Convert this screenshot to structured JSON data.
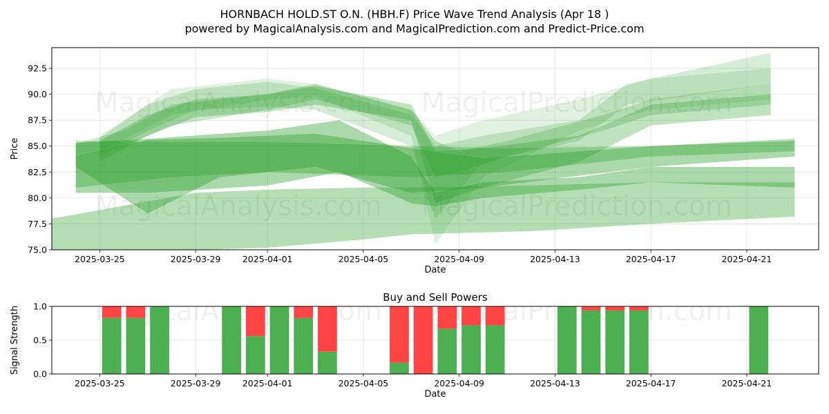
{
  "title": "HORNBACH HOLD.ST O.N. (HBH.F) Price Wave Trend Analysis (Apr 18 )",
  "subtitle": "powered by MagicalAnalysis.com and MagicalPrediction.com and Predict-Price.com",
  "watermarks": [
    "MagicalAnalysis.com",
    "MagicalPrediction.com"
  ],
  "colors": {
    "band": "#2ca02c",
    "buy": "#4caf50",
    "sell": "#ff4444",
    "grid": "#b0b0b0"
  },
  "chart_data": [
    {
      "type": "area",
      "xlabel": "Date",
      "ylabel": "Price",
      "xlim": [
        "2025-03-23",
        "2025-04-24"
      ],
      "ylim": [
        75.0,
        94.5
      ],
      "x_ticks": [
        "2025-03-25",
        "2025-03-29",
        "2025-04-01",
        "2025-04-05",
        "2025-04-09",
        "2025-04-13",
        "2025-04-17",
        "2025-04-21"
      ],
      "y_ticks": [
        "75.0",
        "77.5",
        "80.0",
        "82.5",
        "85.0",
        "87.5",
        "90.0",
        "92.5"
      ],
      "grid": true,
      "bands": [
        {
          "x": [
            "2025-03-24",
            "2025-03-28",
            "2025-04-01",
            "2025-04-07",
            "2025-04-11",
            "2025-04-17",
            "2025-04-23"
          ],
          "upper": [
            85.5,
            85.4,
            85.4,
            85.0,
            84.8,
            85.0,
            85.7
          ],
          "lower": [
            81.0,
            82.0,
            82.5,
            82.0,
            82.5,
            84.0,
            84.5
          ],
          "opacity": 0.35
        },
        {
          "x": [
            "2025-03-24",
            "2025-03-27",
            "2025-03-30",
            "2025-04-03",
            "2025-04-07",
            "2025-04-10",
            "2025-04-17",
            "2025-04-23"
          ],
          "upper": [
            84.0,
            85.6,
            85.8,
            86.2,
            84.8,
            83.8,
            85.0,
            85.5
          ],
          "lower": [
            83.0,
            78.5,
            82.0,
            83.0,
            80.5,
            81.0,
            83.0,
            84.0
          ],
          "opacity": 0.4
        },
        {
          "x": [
            "2025-03-24",
            "2025-03-27",
            "2025-04-01",
            "2025-04-04",
            "2025-04-07",
            "2025-04-08",
            "2025-04-10",
            "2025-04-14",
            "2025-04-17",
            "2025-04-23"
          ],
          "upper": [
            85.3,
            85.7,
            86.5,
            87.5,
            84.0,
            80.5,
            81.5,
            82.0,
            83.0,
            83.0
          ],
          "lower": [
            80.5,
            80.5,
            81.2,
            82.5,
            79.5,
            79.2,
            80.0,
            80.8,
            81.5,
            81.0
          ],
          "opacity": 0.4
        },
        {
          "x": [
            "2025-03-23",
            "2025-03-29",
            "2025-04-01",
            "2025-04-05",
            "2025-04-07",
            "2025-04-12",
            "2025-04-17",
            "2025-04-23"
          ],
          "upper": [
            78.0,
            80.5,
            80.8,
            81.0,
            81.0,
            81.2,
            81.5,
            81.5
          ],
          "lower": [
            75.0,
            75.0,
            75.2,
            76.0,
            76.5,
            76.8,
            77.5,
            78.2
          ],
          "opacity": 0.35
        },
        {
          "x": [
            "2025-03-25",
            "2025-03-27",
            "2025-03-29",
            "2025-04-01",
            "2025-04-03",
            "2025-04-07",
            "2025-04-08",
            "2025-04-10",
            "2025-04-14",
            "2025-04-17",
            "2025-04-22"
          ],
          "upper": [
            85.5,
            88.0,
            89.5,
            90.0,
            90.8,
            89.0,
            84.5,
            84.8,
            86.0,
            89.0,
            90.0
          ],
          "lower": [
            83.5,
            86.0,
            87.8,
            88.3,
            89.0,
            87.5,
            79.5,
            81.0,
            83.5,
            87.0,
            88.0
          ],
          "opacity": 0.3
        },
        {
          "x": [
            "2025-03-25",
            "2025-03-27",
            "2025-03-29",
            "2025-04-01",
            "2025-04-03",
            "2025-04-07",
            "2025-04-08",
            "2025-04-10",
            "2025-04-14",
            "2025-04-16",
            "2025-04-22"
          ],
          "upper": [
            85.8,
            89.0,
            90.5,
            91.2,
            90.6,
            88.0,
            85.0,
            86.0,
            87.5,
            91.0,
            94.0
          ],
          "lower": [
            84.0,
            86.5,
            88.5,
            88.8,
            88.5,
            85.0,
            78.0,
            83.5,
            85.5,
            89.0,
            91.0
          ],
          "opacity": 0.2
        },
        {
          "x": [
            "2025-03-25",
            "2025-03-28",
            "2025-04-01",
            "2025-04-03",
            "2025-04-07",
            "2025-04-08",
            "2025-04-10",
            "2025-04-14",
            "2025-04-17",
            "2025-04-22"
          ],
          "upper": [
            86.0,
            90.5,
            91.5,
            91.0,
            88.5,
            86.0,
            87.5,
            89.5,
            91.5,
            92.5
          ],
          "lower": [
            84.5,
            88.0,
            89.5,
            89.8,
            86.0,
            75.5,
            82.0,
            86.5,
            88.5,
            89.5
          ],
          "opacity": 0.15
        },
        {
          "x": [
            "2025-03-24",
            "2025-03-26",
            "2025-03-28",
            "2025-04-01",
            "2025-04-03",
            "2025-04-07",
            "2025-04-08",
            "2025-04-09",
            "2025-04-11",
            "2025-04-15",
            "2025-04-17",
            "2025-04-22"
          ],
          "upper": [
            85.2,
            86.5,
            89.0,
            90.0,
            91.0,
            88.5,
            85.5,
            84.5,
            85.5,
            88.0,
            89.5,
            91.0
          ],
          "lower": [
            84.0,
            85.0,
            87.0,
            88.5,
            89.5,
            87.0,
            82.0,
            82.5,
            84.0,
            86.5,
            88.0,
            89.0
          ],
          "opacity": 0.25
        }
      ]
    },
    {
      "type": "bar",
      "title": "Buy and Sell Powers",
      "xlabel": "Date",
      "ylabel": "Signal Strength",
      "xlim": [
        "2025-03-23",
        "2025-04-24"
      ],
      "ylim": [
        0.0,
        1.0
      ],
      "x_ticks": [
        "2025-03-25",
        "2025-03-29",
        "2025-04-01",
        "2025-04-05",
        "2025-04-09",
        "2025-04-13",
        "2025-04-17",
        "2025-04-21"
      ],
      "y_ticks": [
        "0.0",
        "0.5",
        "1.0"
      ],
      "grid": true,
      "bars": [
        {
          "date": "2025-03-25",
          "buy": 0.83
        },
        {
          "date": "2025-03-26",
          "buy": 0.83
        },
        {
          "date": "2025-03-27",
          "buy": 1.0
        },
        {
          "date": "2025-03-30",
          "buy": 1.0
        },
        {
          "date": "2025-03-31",
          "buy": 0.56
        },
        {
          "date": "2025-04-01",
          "buy": 1.0
        },
        {
          "date": "2025-04-02",
          "buy": 0.83
        },
        {
          "date": "2025-04-03",
          "buy": 0.33
        },
        {
          "date": "2025-04-06",
          "buy": 0.17
        },
        {
          "date": "2025-04-07",
          "buy": 0.0
        },
        {
          "date": "2025-04-08",
          "buy": 0.67
        },
        {
          "date": "2025-04-09",
          "buy": 0.72
        },
        {
          "date": "2025-04-10",
          "buy": 0.72
        },
        {
          "date": "2025-04-13",
          "buy": 1.0
        },
        {
          "date": "2025-04-14",
          "buy": 0.94
        },
        {
          "date": "2025-04-15",
          "buy": 0.94
        },
        {
          "date": "2025-04-16",
          "buy": 0.94
        },
        {
          "date": "2025-04-21",
          "buy": 1.0
        }
      ]
    }
  ]
}
